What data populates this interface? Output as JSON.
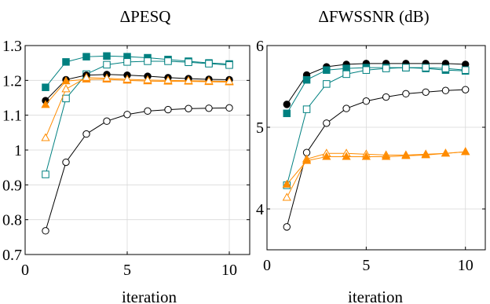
{
  "chart_data": [
    {
      "type": "line",
      "title": "ΔPESQ",
      "xlabel": "iteration",
      "ylabel": "",
      "xlim": [
        0,
        11
      ],
      "ylim": [
        0.7,
        1.3
      ],
      "xticks": [
        0,
        5,
        10
      ],
      "yticks": [
        0.7,
        0.8,
        0.9,
        1,
        1.1,
        1.2,
        1.3
      ],
      "ytick_labels": [
        "0.7",
        "0.8",
        "0.9",
        "1",
        "1.1",
        "1.2",
        "1.3"
      ],
      "grid": true,
      "x": [
        1,
        2,
        3,
        4,
        5,
        6,
        7,
        8,
        9,
        10
      ],
      "series": [
        {
          "color": "#008080",
          "marker": "square-filled",
          "values": [
            1.18,
            1.253,
            1.268,
            1.27,
            1.268,
            1.265,
            1.26,
            1.255,
            1.25,
            1.247
          ]
        },
        {
          "color": "#008080",
          "marker": "square-open",
          "values": [
            0.93,
            1.148,
            1.218,
            1.245,
            1.253,
            1.255,
            1.255,
            1.252,
            1.248,
            1.244
          ]
        },
        {
          "color": "#000000",
          "marker": "circle-filled",
          "values": [
            1.142,
            1.202,
            1.215,
            1.217,
            1.215,
            1.212,
            1.208,
            1.205,
            1.203,
            1.202
          ]
        },
        {
          "color": "#ff8c00",
          "marker": "triangle-filled",
          "values": [
            1.13,
            1.198,
            1.203,
            1.203,
            1.2,
            1.198,
            1.197,
            1.197,
            1.196,
            1.195
          ]
        },
        {
          "color": "#ff8c00",
          "marker": "triangle-open",
          "values": [
            1.035,
            1.175,
            1.208,
            1.206,
            1.203,
            1.201,
            1.2,
            1.199,
            1.198,
            1.197
          ]
        },
        {
          "color": "#000000",
          "marker": "circle-open",
          "values": [
            0.768,
            0.965,
            1.046,
            1.083,
            1.102,
            1.112,
            1.116,
            1.119,
            1.12,
            1.121
          ]
        }
      ]
    },
    {
      "type": "line",
      "title": "ΔFWSSNR (dB)",
      "xlabel": "iteration",
      "ylabel": "",
      "xlim": [
        0,
        11
      ],
      "ylim": [
        3.5,
        6
      ],
      "xticks": [
        0,
        5,
        10
      ],
      "yticks": [
        4,
        5,
        6
      ],
      "ytick_labels": [
        "4",
        "5",
        "6"
      ],
      "grid": true,
      "x": [
        1,
        2,
        3,
        4,
        5,
        6,
        7,
        8,
        9,
        10
      ],
      "series": [
        {
          "color": "#000000",
          "marker": "circle-filled",
          "values": [
            5.28,
            5.64,
            5.74,
            5.77,
            5.78,
            5.78,
            5.78,
            5.78,
            5.78,
            5.77
          ]
        },
        {
          "color": "#008080",
          "marker": "square-filled",
          "values": [
            5.17,
            5.58,
            5.7,
            5.72,
            5.73,
            5.73,
            5.73,
            5.72,
            5.7,
            5.69
          ]
        },
        {
          "color": "#008080",
          "marker": "square-open",
          "values": [
            4.29,
            5.22,
            5.53,
            5.65,
            5.7,
            5.72,
            5.73,
            5.73,
            5.72,
            5.7
          ]
        },
        {
          "color": "#000000",
          "marker": "circle-open",
          "values": [
            3.78,
            4.69,
            5.05,
            5.23,
            5.32,
            5.37,
            5.41,
            5.43,
            5.45,
            5.46
          ]
        },
        {
          "color": "#ff8c00",
          "marker": "triangle-open",
          "values": [
            4.14,
            4.61,
            4.68,
            4.68,
            4.67,
            4.66,
            4.66,
            4.67,
            4.68,
            4.7
          ]
        },
        {
          "color": "#ff8c00",
          "marker": "triangle-filled",
          "values": [
            4.3,
            4.59,
            4.64,
            4.64,
            4.64,
            4.64,
            4.65,
            4.66,
            4.68,
            4.7
          ]
        }
      ]
    }
  ]
}
